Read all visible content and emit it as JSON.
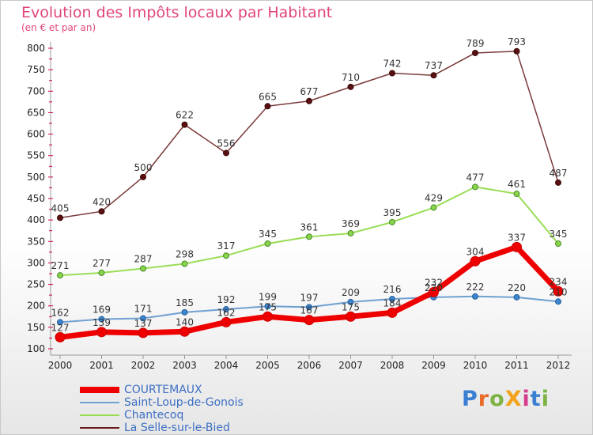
{
  "header": {
    "title": "Evolution des Impôts locaux par Habitant",
    "subtitle": "(en € et par an)"
  },
  "logo": {
    "text": "ProXiti",
    "letter_colors": [
      "#3b7fd3",
      "#e86b2a",
      "#7cb342",
      "#f2a31b",
      "#d63d8c",
      "#3b7fd3",
      "#7cb342"
    ]
  },
  "chart_data": {
    "type": "line",
    "title": "Evolution des Impôts locaux par Habitant",
    "subtitle": "(en € et par an)",
    "xlabel": "",
    "ylabel": "",
    "x": [
      "2000",
      "2001",
      "2002",
      "2003",
      "2004",
      "2005",
      "2006",
      "2007",
      "2008",
      "2009",
      "2010",
      "2011",
      "2012"
    ],
    "ylim": [
      100,
      800
    ],
    "yticks": [
      100,
      150,
      200,
      250,
      300,
      350,
      400,
      450,
      500,
      550,
      600,
      650,
      700,
      750,
      800
    ],
    "grid": false,
    "legend_position": "bottom-left",
    "series": [
      {
        "name": "COURTEMAUX",
        "color": "#ee0000",
        "values": [
          127,
          139,
          137,
          140,
          162,
          175,
          167,
          175,
          184,
          232,
          304,
          337,
          234
        ]
      },
      {
        "name": "Saint-Loup-de-Gonois",
        "color": "#6fa0d2",
        "values": [
          162,
          169,
          171,
          185,
          192,
          199,
          197,
          209,
          216,
          220,
          222,
          220,
          210
        ]
      },
      {
        "name": "Chantecoq",
        "color": "#99dd55",
        "values": [
          271,
          277,
          287,
          298,
          317,
          345,
          361,
          369,
          395,
          429,
          477,
          461,
          345
        ]
      },
      {
        "name": "La Selle-sur-le-Bied",
        "color": "#6a1a1a",
        "values": [
          405,
          420,
          500,
          622,
          556,
          665,
          677,
          710,
          742,
          737,
          789,
          793,
          487
        ]
      }
    ]
  }
}
